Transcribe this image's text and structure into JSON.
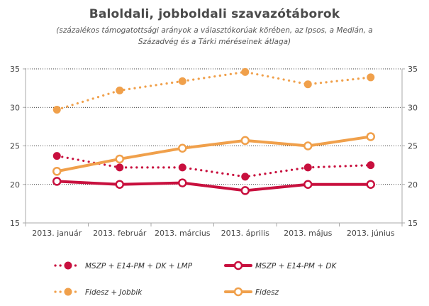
{
  "title": "Baloldali, jobboldali  szavazótáborok",
  "subtitle": "(százalékos támogatottsági  arányok a választókorúak körében, az Ipsos, a Medián, a Századvég és a Tárki méréseinek  átlaga)",
  "colors": {
    "left": "#c8103e",
    "right": "#f0a04b",
    "grid": "#000000",
    "axis": "#a8a8a8"
  },
  "chart_data": {
    "type": "line",
    "title": "Baloldali, jobboldali  szavazótáborok",
    "subtitle": "(százalékos támogatottsági  arányok a választókorúak körében, az Ipsos, a Medián, a Századvég és a Tárki méréseinek  átlaga)",
    "categories": [
      "2013. január",
      "2013. február",
      "2013. március",
      "2013. április",
      "2013. május",
      "2013. június"
    ],
    "ylim": [
      15,
      35
    ],
    "yticks": [
      "15",
      "20",
      "25",
      "30",
      "35"
    ],
    "secondary_yticks": [
      "15",
      "20",
      "25",
      "30",
      "35"
    ],
    "grid": "dotted horizontal at 20, 25, 30, 35",
    "legend_position": "bottom",
    "series": [
      {
        "name": "MSZP + E14-PM + DK + LMP",
        "values": [
          23.7,
          22.2,
          22.2,
          21.0,
          22.2,
          22.5
        ],
        "color": "#c8103e",
        "style": "dotted",
        "marker": "filled"
      },
      {
        "name": "MSZP + E14-PM + DK",
        "values": [
          20.4,
          20.0,
          20.2,
          19.2,
          20.0,
          20.0
        ],
        "color": "#c8103e",
        "style": "solid",
        "marker": "hollow"
      },
      {
        "name": "Fidesz + Jobbik",
        "values": [
          29.7,
          32.2,
          33.4,
          34.6,
          33.0,
          33.9
        ],
        "color": "#f0a04b",
        "style": "dotted",
        "marker": "filled"
      },
      {
        "name": "Fidesz",
        "values": [
          21.7,
          23.3,
          24.7,
          25.7,
          25.0,
          26.2
        ],
        "color": "#f0a04b",
        "style": "solid",
        "marker": "hollow"
      }
    ]
  }
}
